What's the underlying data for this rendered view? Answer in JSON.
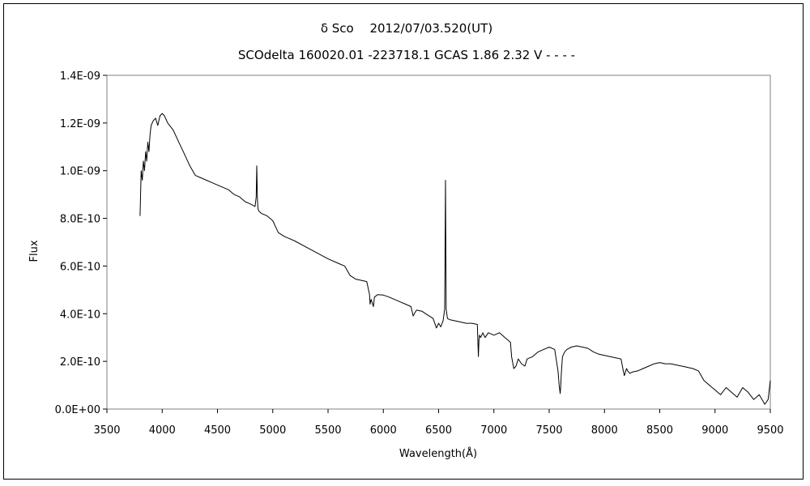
{
  "chart_data": {
    "type": "line",
    "title": "δ Sco　 2012/07/03.520(UT)",
    "subtitle": "SCOdelta 160020.01 -223718.1 GCAS 1.86 2.32 V - - - -",
    "xlabel": "Wavelength(Å)",
    "ylabel": "Flux",
    "xlim": [
      3500,
      9500
    ],
    "ylim": [
      0,
      1.4e-09
    ],
    "x_ticks": [
      "3500",
      "4000",
      "4500",
      "5000",
      "5500",
      "6000",
      "6500",
      "7000",
      "7500",
      "8000",
      "8500",
      "9000",
      "9500"
    ],
    "y_ticks": [
      "0.0E+00",
      "2.0E-10",
      "4.0E-10",
      "6.0E-10",
      "8.0E-10",
      "1.0E-09",
      "1.2E-09",
      "1.4E-09"
    ],
    "grid": false,
    "series": [
      {
        "color": "#000000",
        "x": [
          3800,
          3810,
          3820,
          3830,
          3840,
          3850,
          3860,
          3870,
          3880,
          3890,
          3900,
          3920,
          3940,
          3960,
          3980,
          4000,
          4020,
          4050,
          4100,
          4150,
          4200,
          4250,
          4300,
          4350,
          4400,
          4450,
          4500,
          4550,
          4600,
          4650,
          4700,
          4750,
          4800,
          4840,
          4850,
          4855,
          4861,
          4866,
          4875,
          4900,
          4950,
          5000,
          5020,
          5050,
          5100,
          5150,
          5200,
          5300,
          5400,
          5500,
          5600,
          5650,
          5700,
          5750,
          5800,
          5850,
          5875,
          5880,
          5890,
          5900,
          5910,
          5920,
          5950,
          6000,
          6050,
          6100,
          6150,
          6200,
          6250,
          6270,
          6280,
          6300,
          6350,
          6400,
          6450,
          6480,
          6500,
          6520,
          6540,
          6555,
          6562,
          6568,
          6580,
          6600,
          6650,
          6700,
          6750,
          6800,
          6850,
          6860,
          6865,
          6870,
          6880,
          6900,
          6920,
          6950,
          7000,
          7050,
          7100,
          7150,
          7160,
          7180,
          7200,
          7220,
          7250,
          7280,
          7300,
          7350,
          7400,
          7450,
          7500,
          7550,
          7580,
          7590,
          7600,
          7605,
          7610,
          7620,
          7640,
          7660,
          7700,
          7750,
          7800,
          7850,
          7900,
          7950,
          8000,
          8050,
          8100,
          8150,
          8170,
          8180,
          8200,
          8210,
          8230,
          8250,
          8300,
          8350,
          8400,
          8450,
          8500,
          8550,
          8600,
          8650,
          8700,
          8750,
          8800,
          8850,
          8900,
          8950,
          9000,
          9050,
          9100,
          9150,
          9200,
          9250,
          9300,
          9350,
          9400,
          9450,
          9480,
          9500
        ],
        "y": [
          8.1e-10,
          1e-09,
          9.6e-10,
          1.04e-09,
          1e-09,
          1.08e-09,
          1.04e-09,
          1.12e-09,
          1.08e-09,
          1.15e-09,
          1.19e-09,
          1.21e-09,
          1.22e-09,
          1.19e-09,
          1.23e-09,
          1.24e-09,
          1.23e-09,
          1.2e-09,
          1.17e-09,
          1.12e-09,
          1.07e-09,
          1.02e-09,
          9.8e-10,
          9.7e-10,
          9.6e-10,
          9.5e-10,
          9.4e-10,
          9.3e-10,
          9.2e-10,
          9e-10,
          8.9e-10,
          8.7e-10,
          8.6e-10,
          8.5e-10,
          8.9e-10,
          1.02e-09,
          8.8e-10,
          8.4e-10,
          8.3e-10,
          8.2e-10,
          8.1e-10,
          7.9e-10,
          7.7e-10,
          7.4e-10,
          7.25e-10,
          7.15e-10,
          7.05e-10,
          6.8e-10,
          6.55e-10,
          6.3e-10,
          6.1e-10,
          6e-10,
          5.6e-10,
          5.45e-10,
          5.4e-10,
          5.35e-10,
          4.8e-10,
          4.4e-10,
          4.6e-10,
          4.45e-10,
          4.3e-10,
          4.7e-10,
          4.8e-10,
          4.78e-10,
          4.7e-10,
          4.6e-10,
          4.5e-10,
          4.4e-10,
          4.3e-10,
          3.9e-10,
          4e-10,
          4.15e-10,
          4.1e-10,
          3.95e-10,
          3.8e-10,
          3.4e-10,
          3.6e-10,
          3.45e-10,
          3.7e-10,
          4.2e-10,
          9.6e-10,
          4.2e-10,
          3.8e-10,
          3.75e-10,
          3.7e-10,
          3.65e-10,
          3.6e-10,
          3.6e-10,
          3.55e-10,
          2.2e-10,
          2.9e-10,
          3.1e-10,
          3e-10,
          3.2e-10,
          3e-10,
          3.2e-10,
          3.1e-10,
          3.2e-10,
          3e-10,
          2.8e-10,
          2.2e-10,
          1.7e-10,
          1.8e-10,
          2.1e-10,
          1.9e-10,
          1.8e-10,
          2.1e-10,
          2.2e-10,
          2.4e-10,
          2.5e-10,
          2.6e-10,
          2.5e-10,
          1.6e-10,
          1e-10,
          6.5e-11,
          1e-10,
          1.5e-10,
          2.2e-10,
          2.4e-10,
          2.5e-10,
          2.6e-10,
          2.65e-10,
          2.6e-10,
          2.55e-10,
          2.4e-10,
          2.3e-10,
          2.25e-10,
          2.2e-10,
          2.15e-10,
          2.1e-10,
          1.6e-10,
          1.4e-10,
          1.7e-10,
          1.6e-10,
          1.5e-10,
          1.55e-10,
          1.6e-10,
          1.7e-10,
          1.8e-10,
          1.9e-10,
          1.95e-10,
          1.9e-10,
          1.9e-10,
          1.85e-10,
          1.8e-10,
          1.75e-10,
          1.7e-10,
          1.6e-10,
          1.2e-10,
          1e-10,
          8e-11,
          6e-11,
          9e-11,
          7e-11,
          5e-11,
          9e-11,
          7e-11,
          4e-11,
          6e-11,
          2e-11,
          4e-11,
          1.2e-10
        ]
      }
    ]
  }
}
